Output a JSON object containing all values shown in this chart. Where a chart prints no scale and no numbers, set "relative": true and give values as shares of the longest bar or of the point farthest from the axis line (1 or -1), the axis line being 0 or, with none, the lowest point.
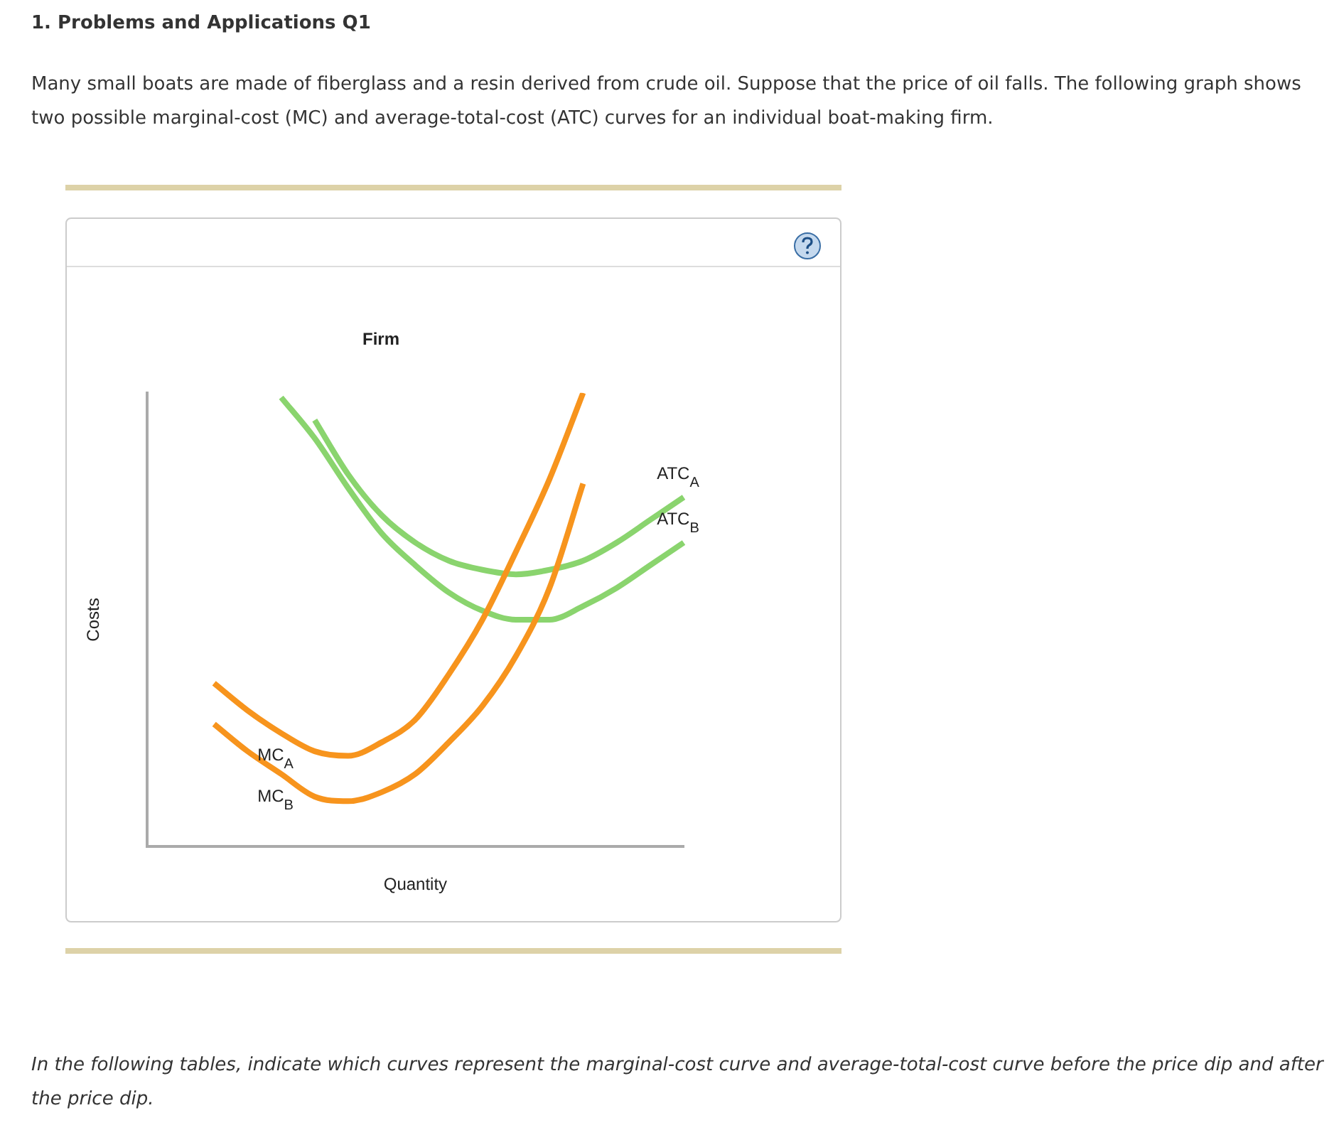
{
  "chart_data": {
    "type": "line",
    "relative": true,
    "title": "Firm",
    "xlabel": "Quantity",
    "ylabel": "Costs",
    "annotations": [
      "1. Problems and Applications Q1",
      "Many small boats are made of fiberglass and a resin derived from crude oil. Suppose that the price of oil falls. The following graph shows two possible marginal-cost (MC) and average-total-cost (ATC) curves for an individual boat-making firm.",
      "In the following tables, indicate which curves represent the marginal-cost curve and average-total-cost curve before the price dip and after the price dip."
    ],
    "categories": [
      null,
      null,
      null,
      null,
      null,
      null,
      null,
      null,
      null,
      null,
      null,
      null,
      null,
      null,
      null,
      null,
      null
    ],
    "series": [
      {
        "name": "MC$_{A}$",
        "color": "#f7941d",
        "values": [
          null,
          null,
          0.36,
          0.3,
          0.25,
          0.21,
          0.2,
          0.23,
          0.28,
          0.38,
          0.5,
          0.65,
          0.81,
          1.0,
          null,
          null,
          null
        ]
      },
      {
        "name": "MC$_{B}$",
        "color": "#f7941d",
        "values": [
          null,
          null,
          0.27,
          0.21,
          0.16,
          0.11,
          0.1,
          0.12,
          0.16,
          0.23,
          0.31,
          0.42,
          0.57,
          0.8,
          null,
          null,
          null
        ]
      },
      {
        "name": "ATC$_{A}$",
        "color": "#8ad46e",
        "values": [
          null,
          null,
          null,
          null,
          null,
          0.94,
          0.82,
          0.73,
          0.67,
          0.63,
          0.61,
          0.6,
          0.61,
          0.63,
          0.67,
          0.72,
          0.77
        ]
      },
      {
        "name": "ATC$_{B}$",
        "color": "#8ad46e",
        "values": [
          null,
          null,
          null,
          null,
          0.99,
          0.9,
          0.79,
          0.69,
          0.62,
          0.56,
          0.52,
          0.5,
          0.5,
          0.53,
          0.57,
          0.62,
          0.67
        ]
      }
    ],
    "grid": false,
    "legend": false,
    "marker": "none",
    "line_style": "solid"
  }
}
